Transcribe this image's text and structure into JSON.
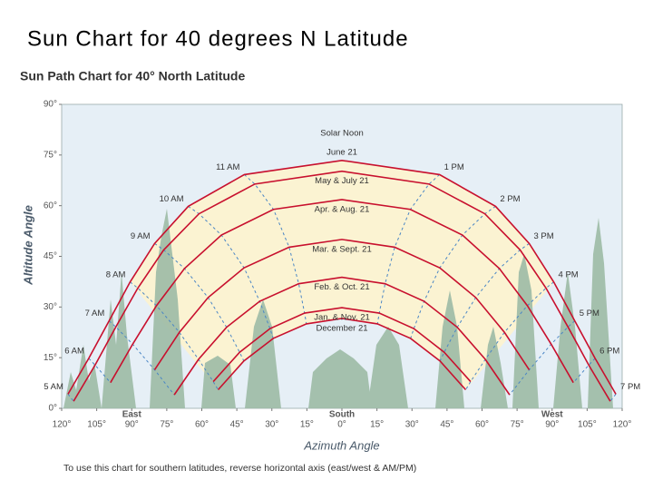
{
  "title": "Sun Chart for 40 degrees N Latitude",
  "chart_data": {
    "type": "line",
    "title": "Sun Path Chart for 40° North Latitude",
    "x_label": "Azimuth Angle",
    "y_label": "Altitude Angle",
    "note": "To use this chart for southern latitudes, reverse horizontal axis (east/west & AM/PM)",
    "xlim": [
      -120,
      120
    ],
    "xticks": [
      {
        "value": -120,
        "label": "120°"
      },
      {
        "value": -105,
        "label": "105°"
      },
      {
        "value": -90,
        "label": "90°"
      },
      {
        "value": -75,
        "label": "75°"
      },
      {
        "value": -60,
        "label": "60°"
      },
      {
        "value": -45,
        "label": "45°"
      },
      {
        "value": -30,
        "label": "30°"
      },
      {
        "value": -15,
        "label": "15°"
      },
      {
        "value": 0,
        "label": "0°"
      },
      {
        "value": 15,
        "label": "15°"
      },
      {
        "value": 30,
        "label": "30°"
      },
      {
        "value": 45,
        "label": "45°"
      },
      {
        "value": 60,
        "label": "60°"
      },
      {
        "value": 75,
        "label": "75°"
      },
      {
        "value": 90,
        "label": "90°"
      },
      {
        "value": 105,
        "label": "105°"
      },
      {
        "value": 120,
        "label": "120°"
      }
    ],
    "ylim": [
      0,
      90
    ],
    "yticks": [
      {
        "value": 0,
        "label": "0°"
      },
      {
        "value": 15,
        "label": "15°"
      },
      {
        "value": 30,
        "label": "30°"
      },
      {
        "value": 45,
        "label": "45°"
      },
      {
        "value": 60,
        "label": "60°"
      },
      {
        "value": 75,
        "label": "75°"
      },
      {
        "value": 90,
        "label": "90°"
      }
    ],
    "direction_labels": [
      {
        "value": -90,
        "label": "East"
      },
      {
        "value": 0,
        "label": "South"
      },
      {
        "value": 90,
        "label": "West"
      }
    ],
    "hour_labels": [
      "5 AM",
      "6 AM",
      "7 AM",
      "8 AM",
      "9 AM",
      "10 AM",
      "11 AM",
      "Solar Noon",
      "1 PM",
      "2 PM",
      "3 PM",
      "4 PM",
      "5 PM",
      "6 PM",
      "7 PM"
    ],
    "hour_line_color": "#4a86c5",
    "series": [
      {
        "name": "June 21",
        "color": "#c8102e",
        "x": [
          -117.3,
          -108.4,
          -99.7,
          -90.7,
          -80.2,
          -65.8,
          -41.8,
          0,
          41.8,
          65.8,
          80.2,
          90.7,
          99.7,
          108.4,
          117.3
        ],
        "values": [
          4.2,
          14.8,
          25.9,
          37.4,
          48.8,
          59.8,
          69.2,
          73.4,
          69.2,
          59.8,
          48.8,
          37.4,
          25.9,
          14.8,
          4.2
        ]
      },
      {
        "name": "May & July 21",
        "color": "#c8102e",
        "x": [
          -114.9,
          -105.7,
          -96.8,
          -87.4,
          -76.3,
          -61.2,
          -37.3,
          0,
          37.3,
          61.2,
          76.3,
          87.4,
          96.8,
          105.7,
          114.9
        ],
        "values": [
          2.1,
          12.8,
          24.1,
          35.6,
          46.9,
          57.6,
          66.4,
          70.2,
          66.4,
          57.6,
          46.9,
          35.6,
          24.1,
          12.8,
          2.1
        ]
      },
      {
        "name": "Apr. & Aug. 21",
        "color": "#c8102e",
        "x": [
          -99.1,
          -89.6,
          -79.4,
          -67.4,
          -51.6,
          -29.3,
          0,
          29.3,
          51.6,
          67.4,
          79.4,
          89.6,
          99.1
        ],
        "values": [
          7.6,
          19.0,
          30.4,
          41.4,
          51.3,
          58.9,
          61.8,
          58.9,
          51.3,
          41.4,
          30.4,
          19.0,
          7.6
        ]
      },
      {
        "name": "Mar. & Sept. 21",
        "color": "#c8102e",
        "x": [
          -80.2,
          -69.6,
          -57.3,
          -41.9,
          -22.6,
          0,
          22.6,
          41.9,
          57.3,
          69.6,
          80.2
        ],
        "values": [
          11.4,
          22.5,
          32.8,
          41.6,
          47.7,
          50,
          47.7,
          41.6,
          32.8,
          22.5,
          11.4
        ]
      },
      {
        "name": "Feb. & Oct. 21",
        "color": "#c8102e",
        "x": [
          -71.8,
          -61.4,
          -49.4,
          -35.2,
          -18.5,
          0,
          18.5,
          35.2,
          49.4,
          61.4,
          71.8
        ],
        "values": [
          4.0,
          14.5,
          24.0,
          31.7,
          36.9,
          38.8,
          36.9,
          31.7,
          24.0,
          14.5,
          4.0
        ]
      },
      {
        "name": "Jan. & Nov. 21",
        "color": "#c8102e",
        "x": [
          -55.1,
          -43.8,
          -30.8,
          -16.0,
          0,
          16.0,
          30.8,
          43.8,
          55.1
        ],
        "values": [
          7.9,
          16.6,
          23.6,
          28.2,
          29.8,
          28.2,
          23.6,
          16.6,
          7.9
        ]
      },
      {
        "name": "December 21",
        "color": "#c8102e",
        "x": [
          -53.0,
          -42.0,
          -29.4,
          -15.2,
          0,
          15.2,
          29.4,
          42.0,
          53.0
        ],
        "values": [
          5.5,
          14.0,
          20.7,
          25.0,
          26.6,
          25.0,
          20.7,
          14.0,
          5.5
        ]
      }
    ]
  }
}
